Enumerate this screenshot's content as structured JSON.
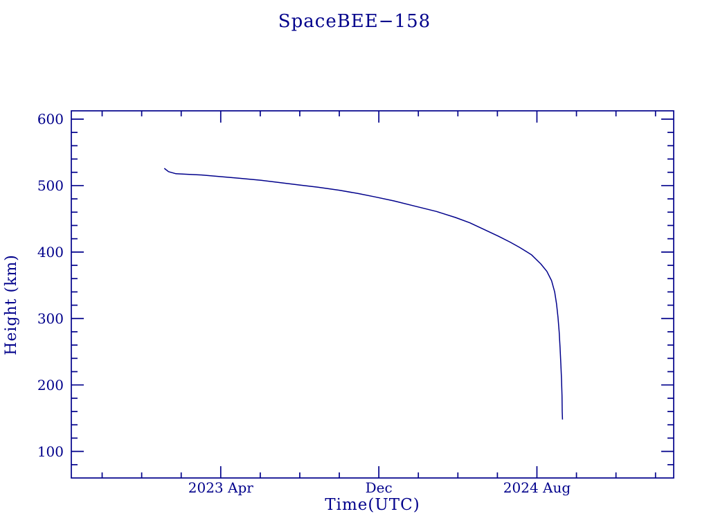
{
  "title": "SpaceBEE−158",
  "colors": {
    "ink": "#00008b",
    "background": "#ffffff"
  },
  "chart_data": {
    "type": "line",
    "title": "SpaceBEE−158",
    "xlabel": "Time(UTC)",
    "ylabel": "Height (km)",
    "grid": false,
    "legend": false,
    "x_axis": {
      "unit": "decimal_year",
      "min": 2022.62,
      "max": 2025.16,
      "major_ticks": [
        {
          "value": 2023.25,
          "label": "2023 Apr"
        },
        {
          "value": 2023.9167,
          "label": "Dec"
        },
        {
          "value": 2024.5833,
          "label": "2024 Aug"
        }
      ],
      "minor_tick_start": 2022.75,
      "minor_tick_step": 0.1666667
    },
    "y_axis": {
      "unit": "km",
      "min": 60,
      "max": 612.5,
      "major_ticks": [
        100,
        200,
        300,
        400,
        500,
        600
      ],
      "minor_tick_step": 20
    },
    "series": [
      {
        "name": "SpaceBEE-158 height",
        "color": "#00008b",
        "points": [
          [
            2023.012,
            526
          ],
          [
            2023.03,
            521
          ],
          [
            2023.06,
            518
          ],
          [
            2023.11,
            517
          ],
          [
            2023.17,
            516
          ],
          [
            2023.25,
            513.5
          ],
          [
            2023.33,
            511
          ],
          [
            2023.42,
            508
          ],
          [
            2023.5,
            504.5
          ],
          [
            2023.58,
            501
          ],
          [
            2023.66,
            497.5
          ],
          [
            2023.75,
            493
          ],
          [
            2023.83,
            488
          ],
          [
            2023.9,
            483
          ],
          [
            2023.98,
            477
          ],
          [
            2024.07,
            469
          ],
          [
            2024.16,
            461
          ],
          [
            2024.24,
            452
          ],
          [
            2024.3,
            444
          ],
          [
            2024.36,
            434
          ],
          [
            2024.42,
            424
          ],
          [
            2024.47,
            415
          ],
          [
            2024.51,
            407
          ],
          [
            2024.56,
            396
          ],
          [
            2024.6,
            382
          ],
          [
            2024.625,
            371
          ],
          [
            2024.645,
            357
          ],
          [
            2024.658,
            340
          ],
          [
            2024.666,
            322
          ],
          [
            2024.672,
            302
          ],
          [
            2024.677,
            280
          ],
          [
            2024.681,
            256
          ],
          [
            2024.684,
            232
          ],
          [
            2024.687,
            208
          ],
          [
            2024.689,
            184
          ],
          [
            2024.69,
            160
          ],
          [
            2024.691,
            148
          ]
        ]
      }
    ]
  }
}
